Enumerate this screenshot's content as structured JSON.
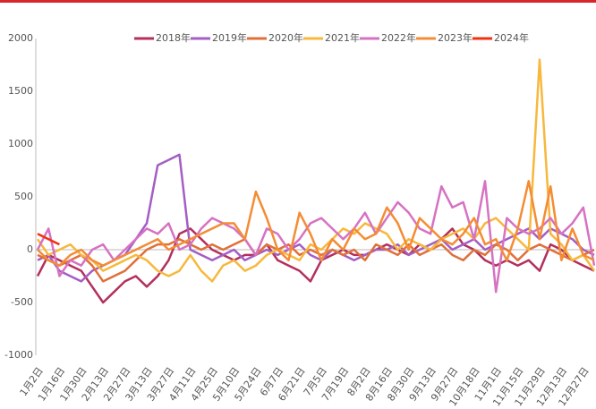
{
  "chart_data": {
    "type": "line",
    "categories": [
      "1月2日",
      null,
      "1月16日",
      null,
      "1月30日",
      null,
      "2月13日",
      null,
      "2月27日",
      null,
      "3月13日",
      null,
      "3月27日",
      null,
      "4月11日",
      null,
      "4月25日",
      null,
      "5月10日",
      null,
      "5月24日",
      null,
      "6月7日",
      null,
      "6月21日",
      null,
      "7月5日",
      null,
      "7月19日",
      null,
      "8月2日",
      null,
      "8月16日",
      null,
      "8月30日",
      null,
      "9月13日",
      null,
      "9月27日",
      null,
      "10月18日",
      null,
      "11月1日",
      null,
      "11月15日",
      null,
      "11月29日",
      null,
      "12月13日",
      null,
      "12月27日",
      null
    ],
    "series": [
      {
        "name": "2018年",
        "color": "#b3305c",
        "values": [
          -250,
          -50,
          -100,
          -150,
          -200,
          -350,
          -500,
          -400,
          -300,
          -250,
          -350,
          -250,
          -100,
          150,
          200,
          100,
          0,
          -50,
          -100,
          -50,
          -50,
          50,
          -100,
          -150,
          -200,
          -300,
          -100,
          -50,
          0,
          -50,
          -50,
          0,
          50,
          0,
          -50,
          50,
          0,
          100,
          200,
          50,
          0,
          -100,
          -150,
          -100,
          -150,
          -100,
          -200,
          50,
          0,
          -100,
          -150,
          -200
        ]
      },
      {
        "name": "2019年",
        "color": "#a45ec4",
        "values": [
          -100,
          -50,
          -200,
          -250,
          -300,
          -200,
          -150,
          -100,
          -50,
          100,
          250,
          800,
          850,
          900,
          0,
          -50,
          -100,
          -50,
          0,
          -100,
          -50,
          0,
          -50,
          0,
          50,
          -50,
          -100,
          0,
          -50,
          -100,
          -50,
          0,
          0,
          50,
          -50,
          0,
          50,
          100,
          0,
          50,
          100,
          0,
          50,
          100,
          150,
          200,
          100,
          200,
          150,
          100,
          0,
          -50
        ]
      },
      {
        "name": "2020年",
        "color": "#e0703a",
        "values": [
          -50,
          -100,
          -150,
          -100,
          -50,
          -150,
          -300,
          -250,
          -200,
          -100,
          0,
          50,
          50,
          100,
          50,
          0,
          50,
          0,
          50,
          100,
          -50,
          50,
          0,
          50,
          -50,
          0,
          -50,
          0,
          -50,
          0,
          -100,
          50,
          0,
          -50,
          50,
          -50,
          0,
          50,
          -50,
          -100,
          0,
          -50,
          50,
          0,
          -100,
          0,
          50,
          0,
          -50,
          -100,
          -50,
          0
        ]
      },
      {
        "name": "2021年",
        "color": "#f7b83c",
        "values": [
          100,
          -50,
          0,
          50,
          -50,
          -100,
          -200,
          -150,
          -100,
          -50,
          -100,
          -200,
          -250,
          -200,
          -50,
          -200,
          -300,
          -150,
          -100,
          -200,
          -150,
          -50,
          0,
          -50,
          -100,
          50,
          0,
          100,
          200,
          150,
          250,
          200,
          150,
          0,
          100,
          50,
          0,
          100,
          150,
          200,
          100,
          250,
          300,
          200,
          100,
          0,
          1800,
          150,
          50,
          -100,
          -50,
          -200
        ]
      },
      {
        "name": "2022年",
        "color": "#d672c2",
        "values": [
          0,
          200,
          -250,
          -100,
          -150,
          0,
          50,
          -100,
          0,
          100,
          200,
          150,
          250,
          0,
          50,
          200,
          300,
          250,
          200,
          100,
          -50,
          200,
          150,
          0,
          100,
          250,
          300,
          200,
          100,
          200,
          350,
          150,
          300,
          450,
          350,
          200,
          150,
          600,
          400,
          450,
          100,
          650,
          -400,
          300,
          200,
          150,
          200,
          300,
          150,
          250,
          400,
          -150
        ]
      },
      {
        "name": "2023年",
        "color": "#f48c34",
        "values": [
          0,
          -100,
          -150,
          -50,
          0,
          -100,
          -150,
          -100,
          -50,
          0,
          50,
          100,
          0,
          50,
          100,
          150,
          200,
          250,
          250,
          100,
          550,
          300,
          0,
          -100,
          350,
          150,
          -100,
          100,
          0,
          200,
          100,
          150,
          400,
          250,
          0,
          300,
          200,
          100,
          50,
          150,
          300,
          50,
          100,
          -100,
          200,
          650,
          100,
          600,
          -100,
          200,
          -50,
          -100
        ]
      },
      {
        "name": "2024年",
        "color": "#f0300e",
        "values": [
          150,
          100,
          50,
          null,
          null,
          null,
          null,
          null,
          null,
          null,
          null,
          null,
          null,
          null,
          null,
          null,
          null,
          null,
          null,
          null,
          null,
          null,
          null,
          null,
          null,
          null,
          null,
          null,
          null,
          null,
          null,
          null,
          null,
          null,
          null,
          null,
          null,
          null,
          null,
          null,
          null,
          null,
          null,
          null,
          null,
          null,
          null,
          null,
          null,
          null,
          null,
          null
        ]
      }
    ],
    "ylim": [
      -1000,
      2000
    ],
    "yticks": [
      -1000,
      -500,
      0,
      500,
      1000,
      1500,
      2000
    ],
    "grid": false
  }
}
